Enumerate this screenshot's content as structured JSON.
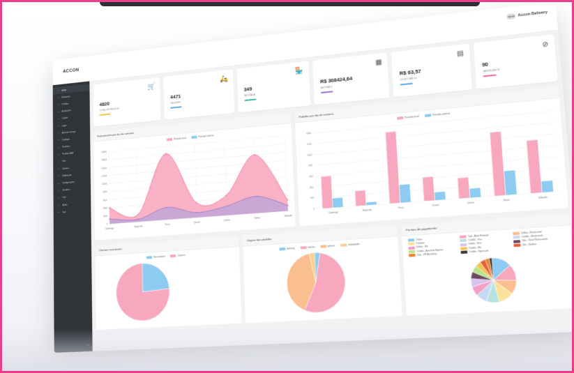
{
  "brand": {
    "logo_text": "ACCON"
  },
  "header": {
    "user_label": "Accon Delivery",
    "avatar_text": "accon"
  },
  "sidebar": {
    "items": [
      {
        "label": "Início",
        "icon": "home-icon",
        "active": true
      },
      {
        "label": "Relatórios",
        "icon": "report-icon"
      },
      {
        "label": "Pedidos",
        "icon": "list-icon"
      },
      {
        "label": "Avaliações",
        "icon": "star-icon"
      },
      {
        "label": "Cupom",
        "icon": "ticket-icon"
      },
      {
        "label": "Login",
        "icon": "user-icon"
      },
      {
        "label": "Área de entrega",
        "icon": "map-icon"
      },
      {
        "label": "Cardápio",
        "icon": "menu-icon"
      },
      {
        "label": "Produtos",
        "icon": "box-icon"
      },
      {
        "label": "Produtos Add",
        "icon": "plus-icon"
      },
      {
        "label": "Loja",
        "icon": "store-icon"
      },
      {
        "label": "Clientes",
        "icon": "users-icon"
      },
      {
        "label": "Fidelização",
        "icon": "heart-icon"
      },
      {
        "label": "Configurações",
        "icon": "gear-icon"
      },
      {
        "label": "Usuários",
        "icon": "user-icon"
      },
      {
        "label": "Loja",
        "icon": "store-icon"
      },
      {
        "label": "Ajuda",
        "icon": "help-icon"
      },
      {
        "label": "Sair",
        "icon": "logout-icon"
      }
    ],
    "collapse_icon": "‹"
  },
  "cards": [
    {
      "value": "4820",
      "label": "Total de pedidos",
      "icon": "🛒",
      "color": "#f5c242"
    },
    {
      "value": "4471",
      "label": "Delivery",
      "icon": "🛵",
      "color": "#5aa9e6"
    },
    {
      "value": "349",
      "label": "Retirada",
      "icon": "🏪",
      "color": "#37b3a4"
    },
    {
      "value": "R$ 308424,64",
      "label": "Faturado",
      "icon": "▦",
      "color": "#9b6fd6"
    },
    {
      "value": "R$ 63,57",
      "label": "Ticket médio",
      "icon": "▤",
      "color": "#5aa9e6"
    },
    {
      "value": "90",
      "label": "Cancelados",
      "icon": "⊘",
      "color": "#f06a8b"
    }
  ],
  "panels": {
    "area_title": "Faturamento por dia da semana",
    "bar_title": "Pedidos por dia da semana",
    "clients_title": "Clientes recorrentes",
    "origin_title": "Origem dos pedidos",
    "payment_title": "Formas de pagamento"
  },
  "colors": {
    "pink": "#f7a8bf",
    "pink_stroke": "#f27a9f",
    "blue": "#8ecbf1",
    "purple": "#c3a6d8",
    "orange": "#f9bf8f"
  },
  "chart_data": [
    {
      "type": "area",
      "categories": [
        "Domingo",
        "Segunda",
        "Terça",
        "Quarta",
        "Quinta",
        "Sexta",
        "Sábado"
      ],
      "series": [
        {
          "name": "Período atual",
          "values": [
            4000,
            1800,
            16200,
            3600,
            4800,
            14000,
            2600
          ]
        },
        {
          "name": "Período anterior",
          "values": [
            1200,
            600,
            3000,
            1200,
            2200,
            4000,
            1300
          ]
        }
      ],
      "y_ticks": [
        "0",
        "2000",
        "4000",
        "6000",
        "8000",
        "10000",
        "12000",
        "14000",
        "16000",
        "18000"
      ],
      "ylim": [
        0,
        18000
      ],
      "legend": "top"
    },
    {
      "type": "bar",
      "categories": [
        "Domingo",
        "Segunda",
        "Terça",
        "Quarta",
        "Quinta",
        "Sexta",
        "Sábado"
      ],
      "series": [
        {
          "name": "Período atual",
          "values": [
            580,
            270,
            1290,
            420,
            360,
            1120,
            920
          ]
        },
        {
          "name": "Período anterior",
          "values": [
            170,
            50,
            320,
            140,
            160,
            420,
            190
          ]
        }
      ],
      "y_ticks": [
        "0",
        "200",
        "400",
        "600",
        "800",
        "1000",
        "1200",
        "1400"
      ],
      "ylim": [
        0,
        1400
      ],
      "legend": "top"
    },
    {
      "type": "pie",
      "labels": [
        "Recorrentes",
        "Clientes"
      ],
      "values": [
        24,
        76
      ],
      "colors": [
        "#8ecbf1",
        "#f7a8bf"
      ],
      "legend": "top"
    },
    {
      "type": "pie",
      "labels": [
        "delivery",
        "balcão",
        "iphone",
        "mobilidade"
      ],
      "values": [
        3,
        54,
        40,
        3
      ],
      "colors": [
        "#8ecbf1",
        "#f7a8bf",
        "#f9bf8f",
        "#f9cf8f"
      ],
      "legend": "top"
    },
    {
      "type": "pie",
      "labels": [
        "Online",
        "Vale - Alelo Refeição",
        "Débito - Mastercard",
        "Dinheiro",
        "Crédito - Visa",
        "Crédito - Mastercard",
        "Débito - Elo",
        "Débito - Visa",
        "Vale - Ticket Restaurante",
        "Crédito - American Express",
        "Crédito - Elo",
        "Vale - Sodexo",
        "Vale - VR Benefícios",
        "Crédito - Hipercard"
      ],
      "values": [
        14,
        12,
        10,
        11,
        9,
        8,
        7,
        6,
        5,
        5,
        4,
        4,
        3,
        2
      ],
      "colors": [
        "#8ecbf1",
        "#f7a8bf",
        "#f9bf8f",
        "#fbe29a",
        "#b6e3e0",
        "#c7d9f5",
        "#f2a0c4",
        "#d7c3ef",
        "#6a4c5e",
        "#b9e38c",
        "#f3c653",
        "#e85d3c",
        "#e8852d",
        "#3c3c3c"
      ],
      "legend": "top"
    }
  ]
}
